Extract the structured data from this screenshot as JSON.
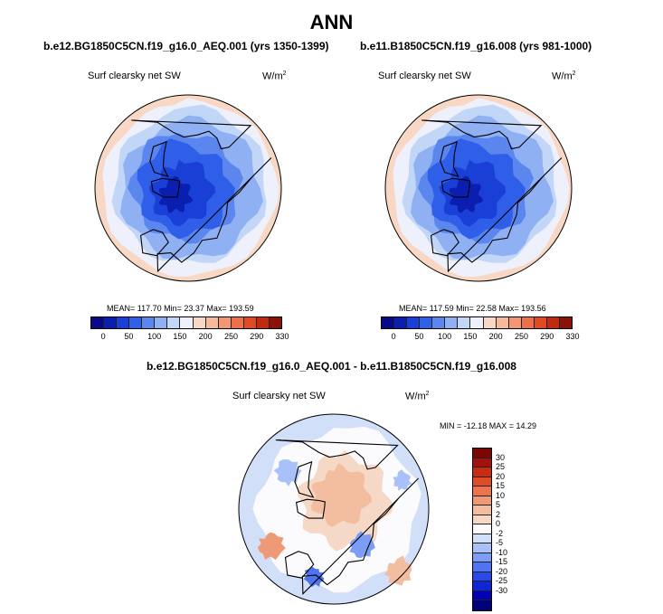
{
  "title": "ANN",
  "units_prefix": "W/m",
  "units_exp": "2",
  "panels": [
    {
      "case": "b.e12.BG1850C5CN.f19_g16.0_AEQ.001 (yrs 1350-1399)",
      "variable": "Surf clearsky net SW",
      "stats": "MEAN= 117.70  Min=  23.37  Max= 193.59"
    },
    {
      "case": "b.e11.B1850C5CN.f19_g16.008 (yrs 981-1000)",
      "variable": "Surf clearsky net SW",
      "stats": "MEAN= 117.59  Min=  22.58  Max= 193.56"
    }
  ],
  "difference": {
    "title": "b.e12.BG1850C5CN.f19_g16.0_AEQ.001 - b.e11.B1850C5CN.f19_g16.008",
    "variable": "Surf clearsky net SW",
    "stats": "MIN = -12.18 MAX =  14.29"
  },
  "colors": {
    "abs_levels": [
      "#08088a",
      "#0a1fb0",
      "#1a3fd6",
      "#2f5fe8",
      "#5a86ee",
      "#8fb0f3",
      "#c2d6f8",
      "#eef0fb",
      "#f8d8c4",
      "#f6b99c",
      "#f29674",
      "#ee7048",
      "#e04a22",
      "#c22a10",
      "#8a1206"
    ],
    "diff_levels": [
      "#00007a",
      "#0000b4",
      "#1024d8",
      "#2a4ae8",
      "#4f74ef",
      "#7d9cf4",
      "#a9c1f8",
      "#d2dff9",
      "#fbfbfd",
      "#f6d8c6",
      "#f3bd9f",
      "#ef9a76",
      "#ea744c",
      "#df4d24",
      "#c82b0f",
      "#a3120a",
      "#7a0605"
    ],
    "land": "#000000"
  },
  "chart_data": [
    {
      "type": "heatmap",
      "projection": "north-polar-stereographic",
      "title": "b.e12.BG1850C5CN.f19_g16.0_AEQ.001 (yrs 1350-1399)",
      "variable": "Surf clearsky net SW",
      "units": "W/m2",
      "mean": 117.7,
      "min": 23.37,
      "max": 193.59,
      "colorbar_ticks": [
        "0",
        "50",
        "100",
        "150",
        "200",
        "250",
        "290",
        "330"
      ]
    },
    {
      "type": "heatmap",
      "projection": "north-polar-stereographic",
      "title": "b.e11.B1850C5CN.f19_g16.008 (yrs 981-1000)",
      "variable": "Surf clearsky net SW",
      "units": "W/m2",
      "mean": 117.59,
      "min": 22.58,
      "max": 193.56,
      "colorbar_ticks": [
        "0",
        "50",
        "100",
        "150",
        "200",
        "250",
        "290",
        "330"
      ]
    },
    {
      "type": "heatmap",
      "projection": "north-polar-stereographic",
      "title": "b.e12.BG1850C5CN.f19_g16.0_AEQ.001 - b.e11.B1850C5CN.f19_g16.008",
      "variable": "Surf clearsky net SW",
      "units": "W/m2",
      "min": -12.18,
      "max": 14.29,
      "colorbar_ticks": [
        "30",
        "25",
        "20",
        "15",
        "10",
        "5",
        "2",
        "0",
        "-2",
        "-5",
        "-10",
        "-15",
        "-20",
        "-25",
        "-30"
      ]
    }
  ]
}
